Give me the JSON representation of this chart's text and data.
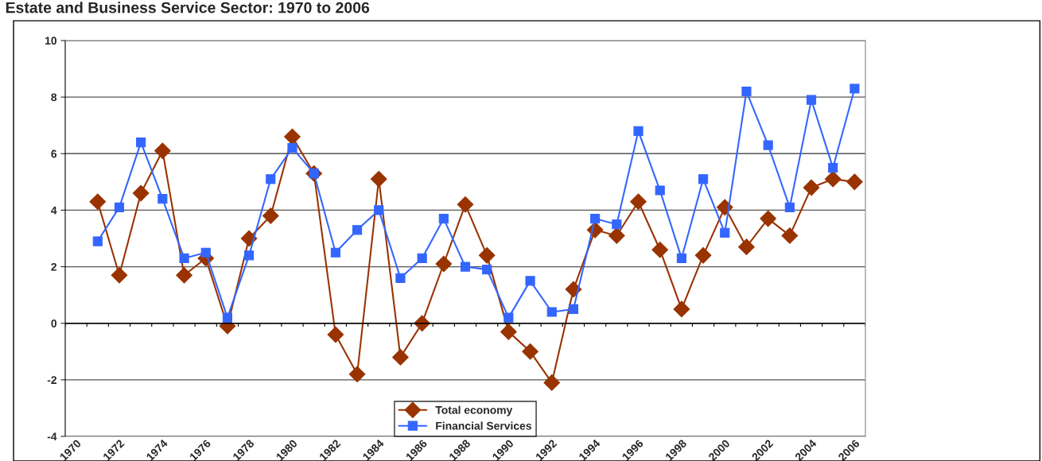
{
  "chart_data": {
    "type": "line",
    "title": "Estate and Business Service Sector: 1970 to 2006",
    "categories": [
      "1970",
      null,
      "1972",
      null,
      "1974",
      null,
      "1976",
      null,
      "1978",
      null,
      "1980",
      null,
      "1982",
      null,
      "1984",
      null,
      "1986",
      null,
      "1988",
      null,
      "1990",
      null,
      "1992",
      null,
      "1994",
      null,
      "1996",
      null,
      "1998",
      null,
      "2000",
      null,
      "2002",
      null,
      "2004",
      null,
      "2006"
    ],
    "series": [
      {
        "name": "Total economy",
        "color": "#993300",
        "marker": "diamond",
        "values": [
          null,
          4.3,
          1.7,
          4.6,
          6.1,
          1.7,
          2.3,
          -0.1,
          3.0,
          3.8,
          6.6,
          5.3,
          -0.4,
          -1.8,
          5.1,
          -1.2,
          0.0,
          2.1,
          4.2,
          2.4,
          -0.3,
          -1.0,
          -2.1,
          1.2,
          3.3,
          3.1,
          4.3,
          2.6,
          0.5,
          2.4,
          4.1,
          2.7,
          3.7,
          3.1,
          4.8,
          5.1,
          5.0
        ]
      },
      {
        "name": "Financial Services",
        "color": "#3366ff",
        "marker": "square",
        "values": [
          null,
          2.9,
          4.1,
          6.4,
          4.4,
          2.3,
          2.5,
          0.2,
          2.4,
          5.1,
          6.2,
          5.3,
          2.5,
          3.3,
          4.0,
          1.6,
          2.3,
          3.7,
          2.0,
          1.9,
          0.2,
          1.5,
          0.4,
          0.5,
          3.7,
          3.5,
          6.8,
          4.7,
          2.3,
          5.1,
          3.2,
          8.2,
          6.3,
          4.1,
          7.9,
          5.5,
          8.3
        ]
      }
    ],
    "ylim": [
      -4,
      10
    ],
    "yticks": [
      -4,
      -2,
      0,
      2,
      4,
      6,
      8,
      10
    ],
    "grid": "y",
    "legend": "bottom",
    "line_style": "solid"
  }
}
